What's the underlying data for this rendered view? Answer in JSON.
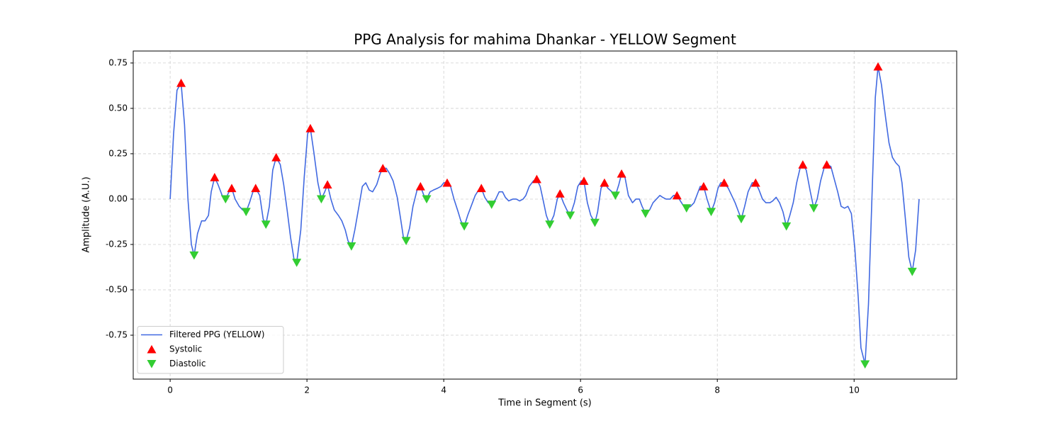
{
  "chart_data": {
    "type": "line",
    "title": "PPG Analysis for mahima Dhankar - YELLOW Segment",
    "xlabel": "Time in Segment (s)",
    "ylabel": "Amplitude (A.U.)",
    "xlim": [
      -0.54,
      11.5
    ],
    "ylim": [
      -0.992,
      0.816
    ],
    "xticks": [
      0,
      2,
      4,
      6,
      8,
      10
    ],
    "yticks": [
      {
        "value": -0.75,
        "label": "-0.75"
      },
      {
        "value": -0.5,
        "label": "-0.50"
      },
      {
        "value": -0.25,
        "label": "-0.25"
      },
      {
        "value": 0,
        "label": "0.00"
      },
      {
        "value": 0.25,
        "label": "0.25"
      },
      {
        "value": 0.5,
        "label": "0.50"
      },
      0.75
    ],
    "grid": true,
    "legend_loc": "lower left",
    "series": [
      {
        "name": "Filtered PPG (YELLOW)",
        "type": "line",
        "color": "#4169e1",
        "x": [
          0,
          0.05,
          0.1,
          0.16,
          0.21,
          0.26,
          0.31,
          0.35,
          0.4,
          0.46,
          0.51,
          0.56,
          0.6,
          0.65,
          0.7,
          0.76,
          0.81,
          0.86,
          0.9,
          0.95,
          1.01,
          1.06,
          1.11,
          1.16,
          1.21,
          1.25,
          1.31,
          1.36,
          1.4,
          1.45,
          1.5,
          1.55,
          1.61,
          1.66,
          1.71,
          1.76,
          1.81,
          1.85,
          1.91,
          1.96,
          2.01,
          2.05,
          2.1,
          2.16,
          2.21,
          2.26,
          2.3,
          2.35,
          2.4,
          2.46,
          2.51,
          2.56,
          2.6,
          2.65,
          2.7,
          2.76,
          2.81,
          2.86,
          2.91,
          2.96,
          3.02,
          3.07,
          3.11,
          3.16,
          3.21,
          3.26,
          3.32,
          3.37,
          3.41,
          3.45,
          3.5,
          3.55,
          3.61,
          3.66,
          3.71,
          3.75,
          3.8,
          3.85,
          3.91,
          3.96,
          4,
          4.05,
          4.1,
          4.15,
          4.21,
          4.25,
          4.3,
          4.35,
          4.4,
          4.46,
          4.51,
          4.55,
          4.6,
          4.65,
          4.7,
          4.76,
          4.81,
          4.86,
          4.9,
          4.95,
          5.01,
          5.06,
          5.11,
          5.16,
          5.2,
          5.25,
          5.31,
          5.36,
          5.41,
          5.45,
          5.5,
          5.55,
          5.61,
          5.66,
          5.7,
          5.75,
          5.8,
          5.85,
          5.91,
          5.96,
          6.01,
          6.05,
          6.1,
          6.15,
          6.21,
          6.25,
          6.3,
          6.35,
          6.4,
          6.46,
          6.51,
          6.56,
          6.6,
          6.65,
          6.7,
          6.76,
          6.81,
          6.86,
          6.9,
          6.95,
          7.01,
          7.06,
          7.11,
          7.16,
          7.2,
          7.25,
          7.31,
          7.36,
          7.41,
          7.46,
          7.51,
          7.55,
          7.61,
          7.66,
          7.71,
          7.75,
          7.8,
          7.85,
          7.91,
          7.96,
          8.01,
          8.05,
          8.1,
          8.16,
          8.21,
          8.26,
          8.31,
          8.35,
          8.4,
          8.45,
          8.51,
          8.56,
          8.61,
          8.66,
          8.71,
          8.77,
          8.81,
          8.86,
          8.91,
          8.96,
          9.01,
          9.06,
          9.11,
          9.16,
          9.21,
          9.25,
          9.3,
          9.36,
          9.41,
          9.46,
          9.51,
          9.56,
          9.6,
          9.66,
          9.71,
          9.76,
          9.81,
          9.86,
          9.91,
          9.96,
          10.01,
          10.06,
          10.1,
          10.16,
          10.21,
          10.26,
          10.31,
          10.35,
          10.4,
          10.46,
          10.51,
          10.56,
          10.61,
          10.66,
          10.7,
          10.75,
          10.8,
          10.85,
          10.9,
          10.95
        ],
        "values": [
          0,
          0.36,
          0.6,
          0.64,
          0.41,
          0,
          -0.25,
          -0.31,
          -0.19,
          -0.12,
          -0.12,
          -0.09,
          0.04,
          0.12,
          0.08,
          0.02,
          0,
          0.04,
          0.06,
          0,
          -0.04,
          -0.06,
          -0.07,
          -0.02,
          0.04,
          0.06,
          0.02,
          -0.11,
          -0.14,
          -0.04,
          0.16,
          0.23,
          0.19,
          0.08,
          -0.06,
          -0.21,
          -0.33,
          -0.35,
          -0.17,
          0.12,
          0.36,
          0.39,
          0.26,
          0.09,
          0,
          0.04,
          0.08,
          0,
          -0.06,
          -0.09,
          -0.12,
          -0.17,
          -0.23,
          -0.26,
          -0.17,
          -0.04,
          0.07,
          0.09,
          0.05,
          0.04,
          0.08,
          0.14,
          0.17,
          0.17,
          0.14,
          0.1,
          0.01,
          -0.11,
          -0.21,
          -0.23,
          -0.16,
          -0.04,
          0.05,
          0.07,
          0.02,
          0,
          0.04,
          0.05,
          0.06,
          0.07,
          0.09,
          0.09,
          0.07,
          0,
          -0.07,
          -0.12,
          -0.15,
          -0.09,
          -0.04,
          0.02,
          0.05,
          0.06,
          0.01,
          -0.02,
          -0.03,
          0,
          0.04,
          0.04,
          0.01,
          -0.01,
          0,
          0,
          -0.01,
          0,
          0.02,
          0.07,
          0.1,
          0.11,
          0.07,
          0,
          -0.09,
          -0.14,
          -0.09,
          0,
          0.03,
          -0.02,
          -0.06,
          -0.09,
          -0.02,
          0.07,
          0.1,
          0.1,
          -0.02,
          -0.09,
          -0.13,
          -0.07,
          0.06,
          0.09,
          0.06,
          0.04,
          0.02,
          0.08,
          0.14,
          0.12,
          0.02,
          -0.02,
          0,
          0,
          -0.04,
          -0.08,
          -0.06,
          -0.02,
          0,
          0.02,
          0.01,
          0,
          0,
          0.02,
          0.02,
          -0.01,
          -0.04,
          -0.05,
          -0.04,
          -0.02,
          0.03,
          0.07,
          0.07,
          0,
          -0.07,
          -0.02,
          0.06,
          0.09,
          0.09,
          0.06,
          0.02,
          -0.02,
          -0.07,
          -0.11,
          -0.04,
          0.04,
          0.09,
          0.09,
          0.05,
          0,
          -0.02,
          -0.02,
          -0.01,
          0.01,
          -0.02,
          -0.07,
          -0.15,
          -0.09,
          -0.02,
          0.09,
          0.17,
          0.19,
          0.16,
          0.04,
          -0.05,
          0,
          0.1,
          0.17,
          0.19,
          0.18,
          0.11,
          0.04,
          -0.04,
          -0.05,
          -0.04,
          -0.08,
          -0.27,
          -0.54,
          -0.82,
          -0.91,
          -0.58,
          0,
          0.56,
          0.73,
          0.63,
          0.45,
          0.31,
          0.23,
          0.2,
          0.18,
          0.09,
          -0.11,
          -0.32,
          -0.4,
          -0.28,
          0
        ]
      },
      {
        "name": "Systolic",
        "type": "scatter",
        "marker": "^",
        "color": "#ff0000",
        "x": [
          0.16,
          0.65,
          0.9,
          1.25,
          1.55,
          2.05,
          2.3,
          3.11,
          3.66,
          4.05,
          4.55,
          5.36,
          5.7,
          6.05,
          6.35,
          6.6,
          7.41,
          7.8,
          8.1,
          8.56,
          9.25,
          9.6,
          10.35
        ],
        "values": [
          0.64,
          0.12,
          0.06,
          0.06,
          0.23,
          0.39,
          0.08,
          0.17,
          0.07,
          0.09,
          0.06,
          0.11,
          0.03,
          0.1,
          0.09,
          0.14,
          0.02,
          0.07,
          0.09,
          0.09,
          0.19,
          0.19,
          0.73
        ]
      },
      {
        "name": "Diastolic",
        "type": "scatter",
        "marker": "v",
        "color": "#32cd32",
        "x": [
          0.35,
          0.81,
          1.11,
          1.4,
          1.85,
          2.21,
          2.65,
          3.45,
          3.75,
          4.3,
          4.7,
          5.55,
          5.85,
          6.21,
          6.51,
          6.95,
          7.55,
          7.91,
          8.35,
          9.01,
          9.41,
          10.16,
          10.85
        ],
        "values": [
          -0.31,
          0,
          -0.07,
          -0.14,
          -0.35,
          0,
          -0.26,
          -0.23,
          0,
          -0.15,
          -0.03,
          -0.14,
          -0.09,
          -0.13,
          0.02,
          -0.08,
          -0.05,
          -0.07,
          -0.11,
          -0.15,
          -0.05,
          -0.91,
          -0.4
        ]
      }
    ]
  }
}
